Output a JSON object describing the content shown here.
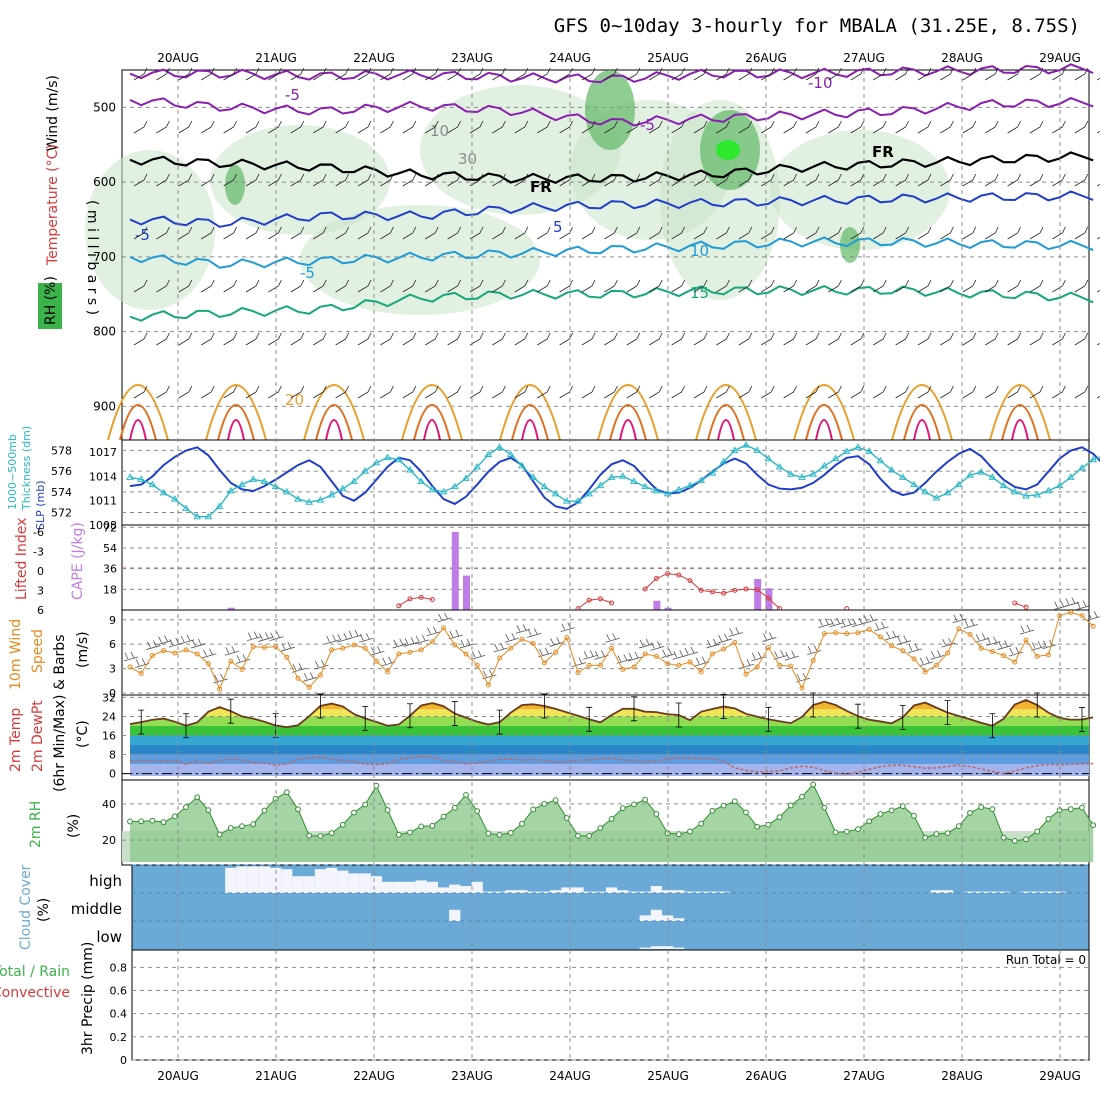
{
  "title": "GFS 0~10day 3-hourly for MBALA (31.25E, 8.75S)",
  "dates": [
    "20AUG",
    "21AUG",
    "22AUG",
    "23AUG",
    "24AUG",
    "25AUG",
    "26AUG",
    "27AUG",
    "28AUG",
    "29AUG"
  ],
  "colors": {
    "rh": "#3cb34a",
    "blue": "#1f3fc9",
    "cyan": "#2bb8c8",
    "purple": "#8a1fb0",
    "orange": "#e68a1f",
    "red": "#d83a3a",
    "cape": "#bf7de8",
    "sky": "#6ba9d6"
  },
  "labels": {
    "wind": "Wind (m/s)",
    "temperature": "Temperature (°C)",
    "rh": "RH (%)",
    "millibars": "( m i l l i b a r s )",
    "thickness": "1000~500mb\nThickness (dm)",
    "slp": "SLP (mb)",
    "lifted": "Lifted Index",
    "cape": "CAPE (J/kg)",
    "wind10_a": "10m Wind",
    "wind10_b": "Speed",
    "wind10_c": "& Barbs",
    "wind10_unit": "(m/s)",
    "temp_a": "2m Temp",
    "temp_b": "2m DewPt",
    "temp_c": "(6hr Min/Max)",
    "temp_unit": "(°C)",
    "rh2": "2m RH",
    "rh2_unit": "(%)",
    "cloud": "Cloud Cover",
    "cloud_unit": "(%)",
    "cloud_high": "high",
    "cloud_middle": "middle",
    "cloud_low": "low",
    "precip": "3hr Precip (mm)",
    "precip_legend_a": "Total / Rain",
    "precip_legend_b": "Convective",
    "run_total": "Run Total = 0"
  },
  "chart_data": [
    {
      "panel": "upper-air",
      "type": "contour",
      "y_axis": "pressure (mb)",
      "yticks": [
        500,
        600,
        700,
        800,
        900
      ],
      "ylim": [
        945,
        450
      ],
      "contour_labels": [
        "-5",
        "-5",
        "-5",
        "-5",
        "-10",
        "5",
        "10",
        "15",
        "20",
        "FR",
        "FR",
        "10",
        "30"
      ],
      "isotherms": [
        {
          "label": "-10",
          "level_mb": [
            455,
            455,
            458,
            456,
            460,
            462,
            455,
            455,
            452,
            450,
            448
          ]
        },
        {
          "label": "-5",
          "level_mb": [
            490,
            500,
            505,
            498,
            505,
            520,
            515,
            510,
            505,
            495,
            493
          ]
        },
        {
          "label": "FR",
          "level_mb": [
            570,
            575,
            580,
            590,
            595,
            595,
            590,
            580,
            575,
            570,
            565
          ]
        },
        {
          "label": "5",
          "level_mb": [
            650,
            655,
            645,
            645,
            635,
            630,
            628,
            625,
            622,
            620,
            618
          ]
        },
        {
          "label": "10",
          "level_mb": [
            700,
            710,
            705,
            700,
            695,
            690,
            685,
            680,
            680,
            683,
            685
          ]
        },
        {
          "label": "15",
          "level_mb": [
            780,
            775,
            770,
            755,
            750,
            750,
            745,
            745,
            745,
            750,
            755
          ]
        }
      ]
    },
    {
      "panel": "thickness-slp",
      "type": "line",
      "ylabel_left": "1000~500mb Thickness (dm)",
      "ylabel_right": "SLP (mb)",
      "thickness_ticks": [
        572,
        574,
        576,
        578
      ],
      "slp_ticks": [
        1008,
        1011,
        1014,
        1017
      ],
      "series": [
        {
          "name": "Thickness",
          "values": [
            575.4,
            575.2,
            574.7,
            573.9,
            573.3,
            572.4,
            571.6,
            571.6,
            572.6,
            574.1,
            574.7,
            575.2,
            575.0,
            574.5,
            574.0,
            573.3,
            573.0,
            573.2,
            573.7,
            574.3,
            575.0,
            576.0,
            576.8,
            577.3,
            577.1,
            576.1,
            575.0,
            574.2,
            574.0,
            574.5,
            575.3,
            576.4,
            577.6,
            578.3,
            577.6,
            576.5,
            575.4,
            574.5,
            573.8,
            573.1,
            573.1,
            573.8,
            574.6,
            575.4,
            575.5,
            575.0,
            574.5,
            574.1,
            573.8,
            574.2,
            574.6,
            575.1,
            575.8,
            576.9,
            578.0,
            578.5,
            578.0,
            577.2,
            576.4,
            575.7,
            575.4,
            575.7,
            576.5,
            577.2,
            577.9,
            578.3,
            577.9,
            577.0,
            576.1,
            575.4,
            574.7,
            574.0,
            573.4,
            573.9,
            574.7,
            575.6,
            575.9,
            575.4,
            574.6,
            574.0,
            573.6,
            573.7,
            574.1,
            574.6,
            575.4,
            576.3,
            577.1,
            577.5,
            576.5,
            575.4,
            574.5,
            574.2,
            574.5,
            574.8
          ]
        },
        {
          "name": "SLP",
          "values": [
            1012.8,
            1013.0,
            1014.0,
            1015.4,
            1016.4,
            1017.2,
            1017.6,
            1016.6,
            1014.8,
            1013.2,
            1012.4,
            1012.2,
            1012.8,
            1013.6,
            1014.5,
            1015.4,
            1016.0,
            1015.2,
            1013.4,
            1011.6,
            1011.0,
            1012.0,
            1013.6,
            1015.2,
            1016.3,
            1016.0,
            1014.6,
            1012.8,
            1011.2,
            1010.6,
            1011.5,
            1013.0,
            1014.6,
            1015.8,
            1016.3,
            1015.4,
            1013.4,
            1011.4,
            1010.3,
            1010.0,
            1010.8,
            1012.4,
            1014.2,
            1015.5,
            1016.0,
            1015.3,
            1013.8,
            1012.4,
            1011.9,
            1012.0,
            1012.6,
            1013.5,
            1014.6,
            1015.6,
            1016.2,
            1015.6,
            1014.2,
            1013.0,
            1012.5,
            1012.4,
            1012.6,
            1013.2,
            1014.2,
            1015.4,
            1016.3,
            1016.5,
            1015.5,
            1013.7,
            1012.3,
            1011.7,
            1012.0,
            1013.2,
            1014.6,
            1015.8,
            1016.8,
            1017.4,
            1016.5,
            1015.0,
            1013.6,
            1012.7,
            1012.4,
            1013.0,
            1014.6,
            1016.2,
            1017.2,
            1017.6,
            1016.8,
            1015.4,
            1014.0,
            1013.4,
            1014.2,
            1015.4,
            1016.5,
            1017.6
          ]
        }
      ]
    },
    {
      "panel": "stability",
      "type": "bar",
      "ylabel_left": "Lifted Index",
      "ylabel_right": "CAPE (J/kg)",
      "li_ticks": [
        "-6",
        "-3",
        "0",
        "3",
        "6"
      ],
      "cape_ticks": [
        18,
        36,
        54,
        72
      ],
      "cape_bars": [
        {
          "time_index": 9,
          "value": 2
        },
        {
          "time_index": 29,
          "value": 68
        },
        {
          "time_index": 30,
          "value": 30
        },
        {
          "time_index": 47,
          "value": 8
        },
        {
          "time_index": 48,
          "value": 2
        },
        {
          "time_index": 56,
          "value": 27
        },
        {
          "time_index": 57,
          "value": 19
        }
      ],
      "lifted_index": [
        {
          "start": 24,
          "values": [
            5.4,
            4.4,
            4.2,
            4.5
          ]
        },
        {
          "start": 40,
          "values": [
            5.8,
            4.6,
            4.4,
            5.0
          ]
        },
        {
          "start": 46,
          "values": [
            3.0,
            1.5,
            0.8,
            1.0,
            1.8,
            3.2,
            3.4,
            3.6,
            3.2,
            3.0,
            3.1,
            4.3,
            5.8
          ]
        },
        {
          "start": 64,
          "values": [
            5.8
          ]
        },
        {
          "start": 79,
          "values": [
            5.0,
            5.6
          ]
        }
      ]
    },
    {
      "panel": "wind10m",
      "type": "line",
      "ylabel": "10m Wind Speed & Barbs (m/s)",
      "yticks": [
        0,
        3,
        6,
        9
      ],
      "values": [
        3.2,
        2.4,
        4.6,
        5.2,
        4.9,
        5.3,
        4.8,
        3.6,
        0.5,
        3.9,
        2.9,
        5.7,
        5.6,
        5.7,
        4.4,
        1.8,
        0.7,
        2.2,
        5.3,
        5.5,
        5.9,
        5.5,
        3.9,
        2.6,
        4.8,
        5.0,
        5.3,
        6.3,
        8.0,
        5.9,
        4.8,
        3.4,
        1.0,
        4.3,
        5.5,
        6.6,
        6.1,
        3.7,
        5.0,
        6.8,
        2.5,
        3.4,
        3.4,
        5.5,
        2.9,
        3.2,
        4.8,
        4.5,
        3.6,
        3.4,
        3.8,
        2.6,
        4.8,
        5.4,
        6.2,
        2.3,
        3.2,
        5.6,
        3.4,
        3.3,
        0.6,
        4.0,
        7.3,
        7.4,
        7.3,
        7.4,
        7.8,
        6.9,
        5.8,
        5.2,
        4.2,
        2.6,
        3.4,
        4.9,
        7.9,
        7.2,
        5.5,
        5.1,
        4.6,
        3.8,
        6.5,
        4.5,
        4.7,
        9.5,
        9.9,
        9.5,
        8.2
      ]
    },
    {
      "panel": "temperature2m",
      "type": "area",
      "ylabel": "2m Temp / 2m DewPt (6hr Min/Max) (°C)",
      "yticks": [
        0,
        8,
        16,
        24,
        32
      ],
      "temp": [
        20.8,
        21.6,
        22.6,
        23.1,
        21.8,
        20.1,
        21.5,
        26.0,
        27.9,
        26.2,
        24.0,
        23.1,
        21.8,
        20.2,
        19.5,
        20.3,
        24.1,
        28.4,
        29.4,
        28.2,
        25.0,
        23.2,
        21.7,
        20.1,
        20.6,
        24.3,
        28.6,
        29.6,
        28.3,
        25.2,
        23.5,
        21.8,
        20.6,
        21.6,
        25.6,
        28.8,
        29.1,
        28.4,
        27.2,
        25.7,
        24.3,
        22.8,
        21.5,
        24.6,
        27.2,
        27.2,
        26.0,
        25.8,
        24.9,
        24.6,
        22.4,
        26.0,
        27.1,
        28.2,
        27.4,
        25.1,
        23.9,
        22.8,
        22.0,
        21.2,
        23.8,
        28.8,
        30.2,
        28.8,
        26.3,
        24.1,
        22.6,
        21.9,
        21.1,
        23.6,
        28.6,
        29.8,
        27.7,
        25.6,
        24.2,
        22.8,
        21.3,
        20.1,
        23.0,
        29.0,
        30.9,
        28.8,
        25.6,
        23.4,
        22.6,
        22.7,
        23.6
      ],
      "dewpoint": [
        5.2,
        5.5,
        5.4,
        5.2,
        5.4,
        4.0,
        5.3,
        4.2,
        5.5,
        6.0,
        5.7,
        4.6,
        4.5,
        3.6,
        4.0,
        6.0,
        6.6,
        7.0,
        6.0,
        5.5,
        5.1,
        4.0,
        3.8,
        4.2,
        6.0,
        6.6,
        7.1,
        6.8,
        5.5,
        5.0,
        4.1,
        4.5,
        5.2,
        6.0,
        6.2,
        5.6,
        5.9,
        5.5,
        4.9,
        5.0,
        5.6,
        5.7,
        6.3,
        6.4,
        5.6,
        5.6,
        5.0,
        5.2,
        6.3,
        6.6,
        6.5,
        6.3,
        6.2,
        5.3,
        2.4,
        1.4,
        0.7,
        0.9,
        1.2,
        2.4,
        3.1,
        2.7,
        1.2,
        0.2,
        -0.2,
        0.6,
        1.8,
        2.9,
        3.5,
        3.5,
        2.9,
        2.3,
        2.4,
        3.0,
        3.6,
        3.0,
        2.0,
        0.9,
        0.1,
        1.1,
        2.4,
        3.4,
        3.8,
        3.8,
        3.9,
        4.1,
        4.2
      ]
    },
    {
      "panel": "rh2m",
      "type": "area",
      "ylabel": "2m RH (%)",
      "yticks": [
        20,
        40
      ],
      "values": [
        30.3,
        30.4,
        30.7,
        29.9,
        33.1,
        38.2,
        43.6,
        36.5,
        23.1,
        26.7,
        27.7,
        28.8,
        36.3,
        42.8,
        46.4,
        37.0,
        22.5,
        22.3,
        23.9,
        28.5,
        35.2,
        39.6,
        49.9,
        36.6,
        23.0,
        24.3,
        27.6,
        27.9,
        33.0,
        37.8,
        44.9,
        36.0,
        23.7,
        22.9,
        24.1,
        29.0,
        36.9,
        40.0,
        42.0,
        32.2,
        22.4,
        22.4,
        26.7,
        31.7,
        37.6,
        39.7,
        42.3,
        34.4,
        23.9,
        23.3,
        24.8,
        29.1,
        36.2,
        39.0,
        41.4,
        35.3,
        27.4,
        28.5,
        32.7,
        39.1,
        43.9,
        50.6,
        37.9,
        24.3,
        24.7,
        26.1,
        30.4,
        34.4,
        36.4,
        38.7,
        33.4,
        21.4,
        23.4,
        23.9,
        27.7,
        35.0,
        38.2,
        37.1,
        21.4,
        19.6,
        20.5,
        24.8,
        31.7,
        36.5,
        37.1,
        37.9,
        28.3
      ]
    },
    {
      "panel": "cloud-cover",
      "type": "bar",
      "ylabel": "Cloud Cover (%)",
      "high": [
        [
          9,
          90
        ],
        [
          10,
          95
        ],
        [
          11,
          95
        ],
        [
          12,
          95
        ],
        [
          13,
          90
        ],
        [
          14,
          85
        ],
        [
          15,
          60
        ],
        [
          16,
          60
        ],
        [
          17,
          85
        ],
        [
          18,
          90
        ],
        [
          19,
          80
        ],
        [
          20,
          70
        ],
        [
          21,
          70
        ],
        [
          22,
          60
        ],
        [
          23,
          40
        ],
        [
          24,
          40
        ],
        [
          25,
          40
        ],
        [
          26,
          45
        ],
        [
          27,
          40
        ],
        [
          28,
          20
        ],
        [
          29,
          30
        ],
        [
          30,
          25
        ],
        [
          31,
          40
        ],
        [
          32,
          5
        ],
        [
          33,
          5
        ],
        [
          34,
          10
        ],
        [
          35,
          10
        ],
        [
          36,
          5
        ],
        [
          37,
          5
        ],
        [
          38,
          10
        ],
        [
          39,
          20
        ],
        [
          40,
          20
        ],
        [
          41,
          5
        ],
        [
          42,
          5
        ],
        [
          43,
          20
        ],
        [
          44,
          10
        ],
        [
          45,
          5
        ],
        [
          46,
          5
        ],
        [
          47,
          25
        ],
        [
          48,
          10
        ],
        [
          49,
          10
        ],
        [
          50,
          5
        ],
        [
          51,
          5
        ],
        [
          52,
          5
        ],
        [
          53,
          5
        ],
        [
          72,
          10
        ],
        [
          73,
          10
        ],
        [
          75,
          5
        ],
        [
          76,
          5
        ],
        [
          77,
          5
        ],
        [
          78,
          5
        ],
        [
          80,
          5
        ],
        [
          81,
          5
        ],
        [
          82,
          5
        ],
        [
          83,
          5
        ]
      ],
      "middle": [
        [
          29,
          40
        ],
        [
          46,
          20
        ],
        [
          47,
          40
        ],
        [
          48,
          20
        ],
        [
          49,
          10
        ]
      ],
      "low": [
        [
          46,
          5
        ],
        [
          47,
          10
        ],
        [
          48,
          10
        ],
        [
          49,
          5
        ]
      ]
    },
    {
      "panel": "precipitation",
      "type": "bar",
      "ylabel": "3hr Precip (mm)",
      "yticks": [
        0,
        0.2,
        0.4,
        0.6,
        0.8
      ],
      "values": []
    }
  ]
}
